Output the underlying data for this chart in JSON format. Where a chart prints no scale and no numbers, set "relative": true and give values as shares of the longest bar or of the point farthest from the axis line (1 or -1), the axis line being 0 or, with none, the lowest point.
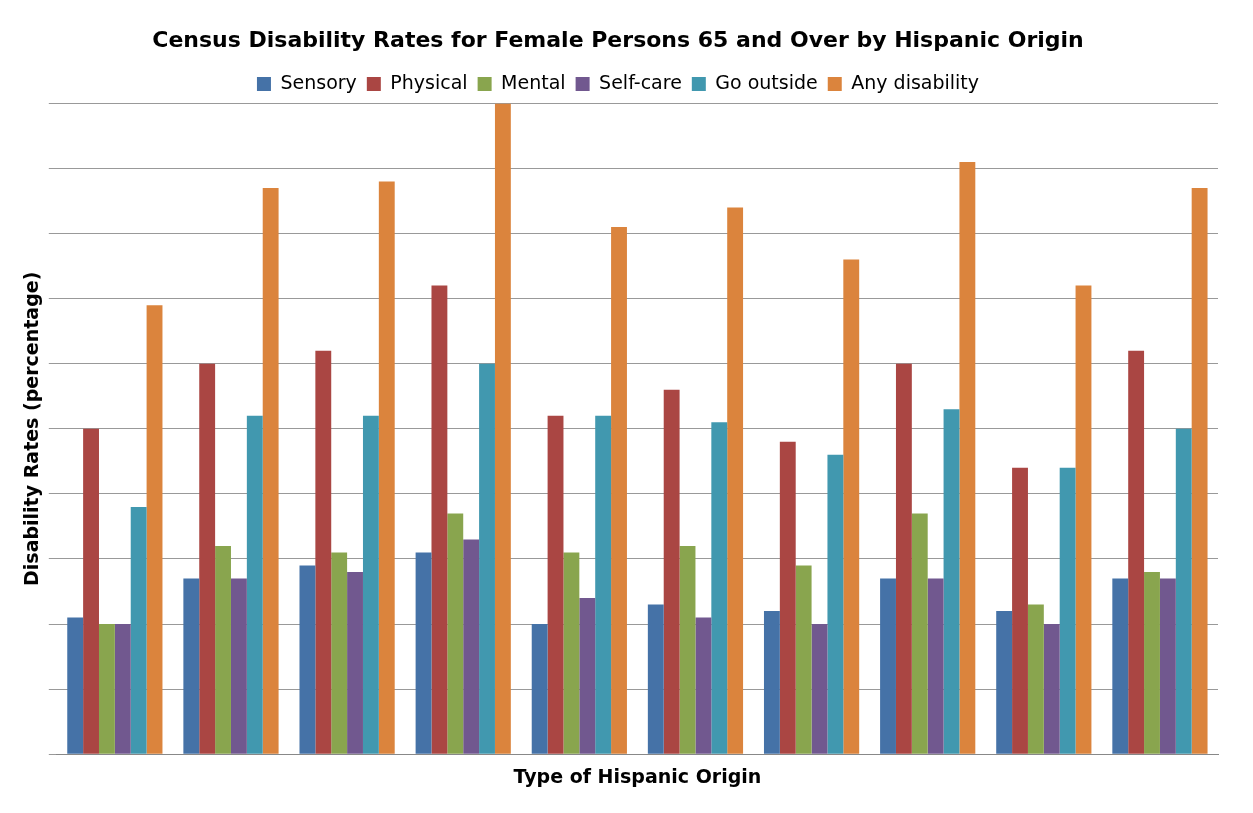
{
  "chart_data": {
    "type": "bar",
    "title": "Census Disability Rates for Female Persons 65 and Over by Hispanic Origin",
    "xlabel": "Type of Hispanic Origin",
    "ylabel": "Disability Rates (percentage)",
    "relative": true,
    "grid": "y",
    "legend": "top",
    "categories": [
      null,
      null,
      null,
      null,
      null,
      null,
      null,
      null,
      null,
      null
    ],
    "series": [
      {
        "name": "Sensory",
        "color": "#4572a7",
        "values": [
          0.21,
          0.27,
          0.29,
          0.31,
          0.2,
          0.23,
          0.22,
          0.27,
          0.22,
          0.27
        ]
      },
      {
        "name": "Physical",
        "color": "#aa4643",
        "values": [
          0.5,
          0.6,
          0.62,
          0.72,
          0.52,
          0.56,
          0.48,
          0.6,
          0.44,
          0.62
        ]
      },
      {
        "name": "Mental",
        "color": "#89a54e",
        "values": [
          0.2,
          0.32,
          0.31,
          0.37,
          0.31,
          0.32,
          0.29,
          0.37,
          0.23,
          0.28
        ]
      },
      {
        "name": "Self-care",
        "color": "#71588f",
        "values": [
          0.2,
          0.27,
          0.28,
          0.33,
          0.24,
          0.21,
          0.2,
          0.27,
          0.2,
          0.27
        ]
      },
      {
        "name": "Go outside",
        "color": "#4198af",
        "values": [
          0.38,
          0.52,
          0.52,
          0.6,
          0.52,
          0.51,
          0.46,
          0.53,
          0.44,
          0.5
        ]
      },
      {
        "name": "Any disability",
        "color": "#db843d",
        "values": [
          0.69,
          0.87,
          0.88,
          1,
          0.81,
          0.84,
          0.76,
          0.91,
          0.72,
          0.87
        ]
      }
    ]
  }
}
